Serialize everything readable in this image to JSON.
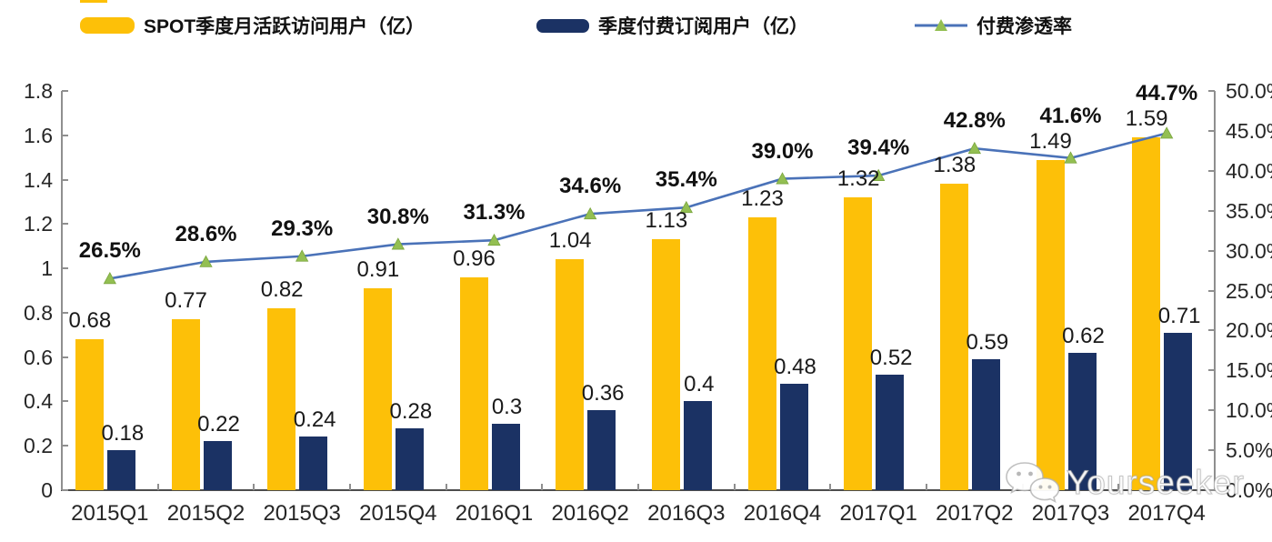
{
  "legend": {
    "mau": "SPOT季度月活跃访问用户（亿）",
    "subs": "季度付费订阅用户（亿）",
    "penetration": "付费渗透率"
  },
  "colors": {
    "mau_bar": "#FDC008",
    "subs_bar": "#1B3264",
    "line": "#4A72B8",
    "marker": "#93BF52",
    "marker_stroke": "#7AA53E",
    "axis": "#8F8F8F",
    "bottom_axis": "#4D4D4D",
    "label_text": "#1A1A1A"
  },
  "left_axis": {
    "ticks": [
      "1.8",
      "1.6",
      "1.4",
      "1.2",
      "1",
      "0.8",
      "0.6",
      "0.4",
      "0.2",
      "0"
    ],
    "max": 1.8
  },
  "right_axis": {
    "ticks": [
      "50.0%",
      "45.0%",
      "40.0%",
      "35.0%",
      "30.0%",
      "25.0%",
      "20.0%",
      "15.0%",
      "10.0%",
      "5.0%",
      "0.0%"
    ],
    "max": 50
  },
  "watermark": {
    "text": "Yourseeker",
    "icon": "wechat-icon"
  },
  "chart_data": {
    "type": "bar+line",
    "categories": [
      "2015Q1",
      "2015Q2",
      "2015Q3",
      "2015Q4",
      "2016Q1",
      "2016Q2",
      "2016Q3",
      "2016Q4",
      "2017Q1",
      "2017Q2",
      "2017Q3",
      "2017Q4"
    ],
    "series": [
      {
        "name": "SPOT季度月活跃访问用户（亿）",
        "type": "bar",
        "axis": "left",
        "values": [
          0.68,
          0.77,
          0.82,
          0.91,
          0.96,
          1.04,
          1.13,
          1.23,
          1.32,
          1.38,
          1.49,
          1.59
        ],
        "labels": [
          "0.68",
          "0.77",
          "0.82",
          "0.91",
          "0.96",
          "1.04",
          "1.13",
          "1.23",
          "1.32",
          "1.38",
          "1.49",
          "1.59"
        ]
      },
      {
        "name": "季度付费订阅用户（亿）",
        "type": "bar",
        "axis": "left",
        "values": [
          0.18,
          0.22,
          0.24,
          0.28,
          0.3,
          0.36,
          0.4,
          0.48,
          0.52,
          0.59,
          0.62,
          0.71
        ],
        "labels": [
          "0.18",
          "0.22",
          "0.24",
          "0.28",
          "0.3",
          "0.36",
          "0.4",
          "0.48",
          "0.52",
          "0.59",
          "0.62",
          "0.71"
        ]
      },
      {
        "name": "付费渗透率",
        "type": "line",
        "axis": "right",
        "values": [
          26.5,
          28.6,
          29.3,
          30.8,
          31.3,
          34.6,
          35.4,
          39.0,
          39.4,
          42.8,
          41.6,
          44.7
        ],
        "labels": [
          "26.5%",
          "28.6%",
          "29.3%",
          "30.8%",
          "31.3%",
          "34.6%",
          "35.4%",
          "39.0%",
          "39.4%",
          "42.8%",
          "41.6%",
          "44.7%"
        ]
      }
    ],
    "left_ylim": [
      0,
      1.8
    ],
    "right_ylim": [
      0,
      50
    ],
    "grid": false,
    "legend_position": "top"
  }
}
